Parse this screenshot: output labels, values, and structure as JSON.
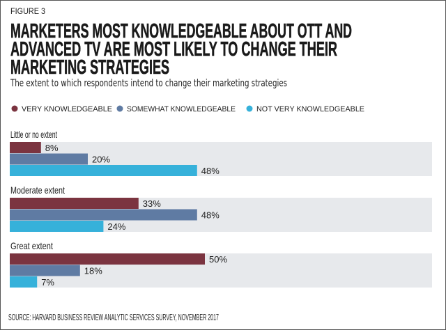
{
  "figure_label": "FIGURE 3",
  "title_lines": [
    "MARKETERS MOST KNOWLEDGEABLE ABOUT OTT AND",
    "ADVANCED TV ARE MOST LIKELY TO CHANGE THEIR",
    "MARKETING STRATEGIES"
  ],
  "subtitle": "The extent to which respondents intend to change their marketing strategies",
  "source": "SOURCE: HARVARD BUSINESS REVIEW ANALYTIC SERVICES SURVEY, NOVEMBER 2017",
  "chart_data": {
    "type": "bar",
    "orientation": "horizontal",
    "title": "MARKETERS MOST KNOWLEDGEABLE ABOUT OTT AND ADVANCED TV ARE MOST LIKELY TO CHANGE THEIR MARKETING STRATEGIES",
    "subtitle": "The extent to which respondents intend to change their marketing strategies",
    "categories": [
      "Little or no extent",
      "Moderate extent",
      "Great extent"
    ],
    "series": [
      {
        "name": "VERY KNOWLEDGEABLE",
        "color": "#7b3440",
        "values": [
          8,
          33,
          50
        ]
      },
      {
        "name": "SOMEWHAT KNOWLEDGEABLE",
        "color": "#5f7ba3",
        "values": [
          20,
          48,
          18
        ]
      },
      {
        "name": "NOT VERY KNOWLEDGEABLE",
        "color": "#36b1da",
        "values": [
          48,
          24,
          7
        ]
      }
    ],
    "value_suffix": "%",
    "xlim": [
      0,
      108
    ],
    "legend_position": "top-left",
    "grid": false,
    "panel_color": "#e7e9ec"
  }
}
